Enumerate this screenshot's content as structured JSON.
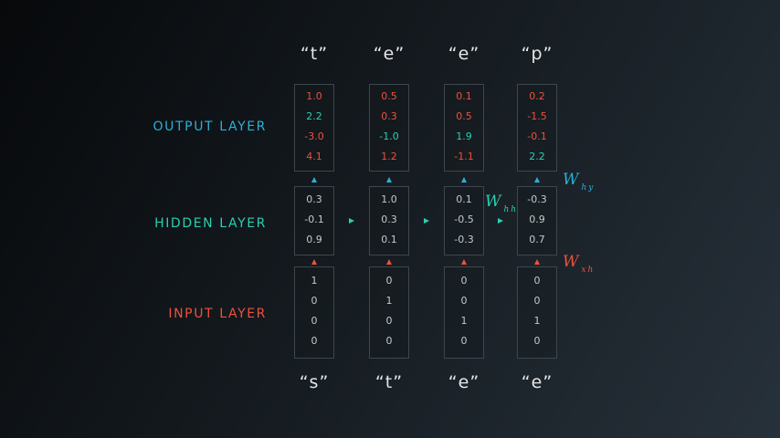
{
  "colors": {
    "output": "#2bb0d6",
    "hidden": "#2ad0b0",
    "input": "#f0503c",
    "positive_value": "#f0503c",
    "max_value": "#2ad0b0",
    "neutral_value": "#c8c8c8"
  },
  "labels": {
    "output_layer": "OUTPUT LAYER",
    "hidden_layer": "HIDDEN LAYER",
    "input_layer": "INPUT LAYER"
  },
  "weights": {
    "w_hy": {
      "main": "W",
      "sub": "hy"
    },
    "w_hh": {
      "main": "W",
      "sub": "hh"
    },
    "w_xh": {
      "main": "W",
      "sub": "xh"
    }
  },
  "steps": [
    {
      "target_char": "“t”",
      "input_char": "“s”",
      "output": [
        {
          "v": "1.0",
          "c": "red"
        },
        {
          "v": "2.2",
          "c": "green"
        },
        {
          "v": "-3.0",
          "c": "red"
        },
        {
          "v": "4.1",
          "c": "red"
        }
      ],
      "hidden": [
        "0.3",
        "-0.1",
        "0.9"
      ],
      "input": [
        "1",
        "0",
        "0",
        "0"
      ]
    },
    {
      "target_char": "“e”",
      "input_char": "“t”",
      "output": [
        {
          "v": "0.5",
          "c": "red"
        },
        {
          "v": "0.3",
          "c": "red"
        },
        {
          "v": "-1.0",
          "c": "green"
        },
        {
          "v": "1.2",
          "c": "red"
        }
      ],
      "hidden": [
        "1.0",
        "0.3",
        "0.1"
      ],
      "input": [
        "0",
        "1",
        "0",
        "0"
      ]
    },
    {
      "target_char": "“e”",
      "input_char": "“e”",
      "output": [
        {
          "v": "0.1",
          "c": "red"
        },
        {
          "v": "0.5",
          "c": "red"
        },
        {
          "v": "1.9",
          "c": "green"
        },
        {
          "v": "-1.1",
          "c": "red"
        }
      ],
      "hidden": [
        "0.1",
        "-0.5",
        "-0.3"
      ],
      "input": [
        "0",
        "0",
        "1",
        "0"
      ]
    },
    {
      "target_char": "“p”",
      "input_char": "“e”",
      "output": [
        {
          "v": "0.2",
          "c": "red"
        },
        {
          "v": "-1.5",
          "c": "red"
        },
        {
          "v": "-0.1",
          "c": "red"
        },
        {
          "v": "2.2",
          "c": "green"
        }
      ],
      "hidden": [
        "-0.3",
        "0.9",
        "0.7"
      ],
      "input": [
        "0",
        "0",
        "1",
        "0"
      ]
    }
  ]
}
